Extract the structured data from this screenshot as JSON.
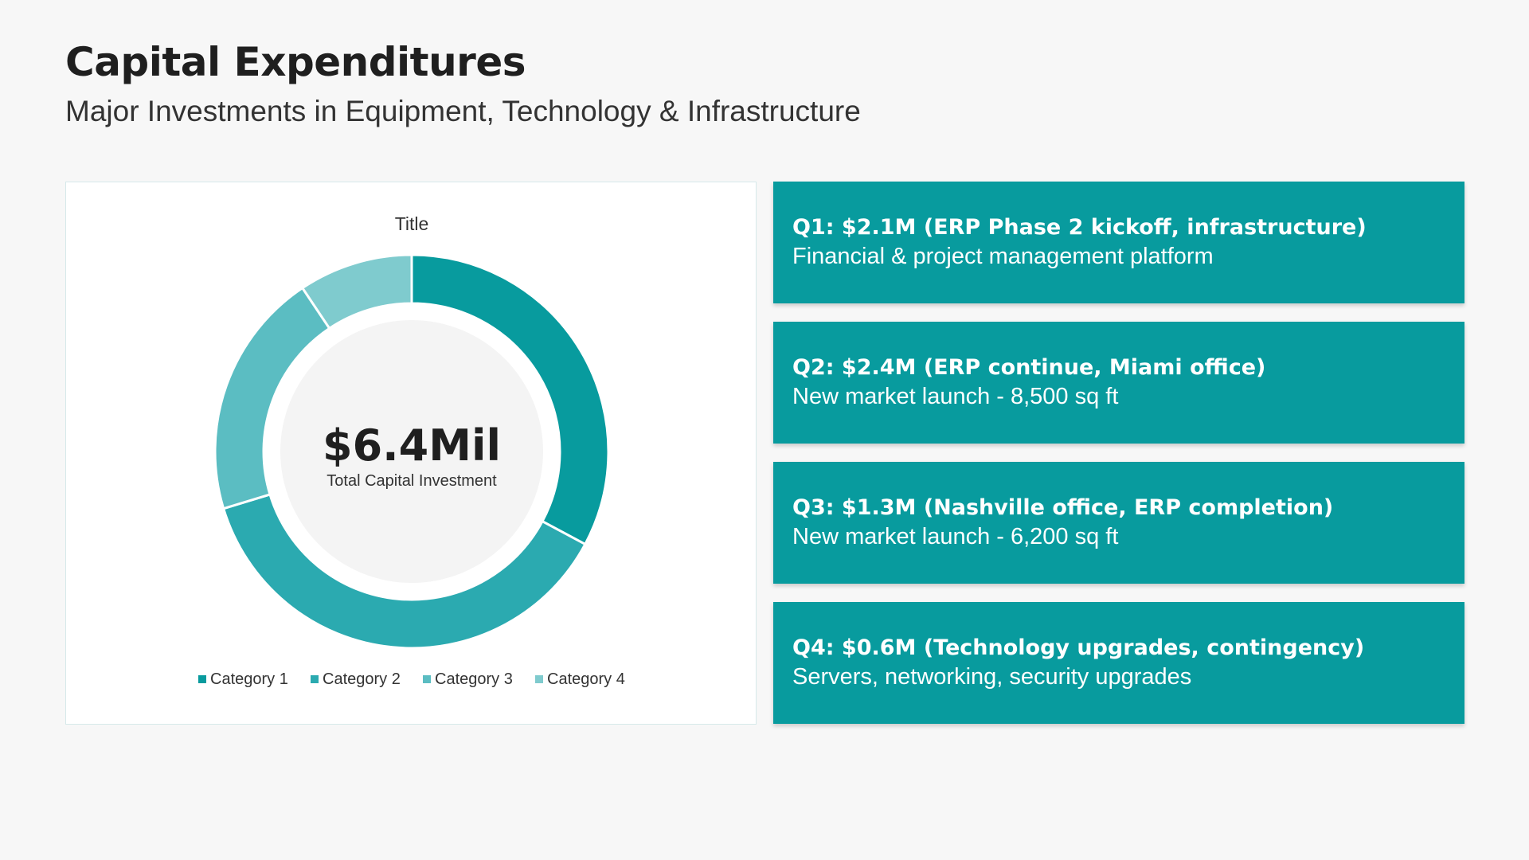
{
  "page": {
    "title": "Capital Expenditures",
    "subtitle": "Major Investments in Equipment, Technology & Infrastructure"
  },
  "colors": {
    "background": "#f7f7f7",
    "accent": "#089b9e",
    "series": [
      "#089b9e",
      "#2baab0",
      "#5bbdc2",
      "#7fcbce"
    ],
    "center_fill": "#f4f4f4",
    "text_dark": "#1f1f1f"
  },
  "chart_data": {
    "type": "pie",
    "title": "Title",
    "donut": true,
    "categories": [
      "Category 1",
      "Category 2",
      "Category 3",
      "Category 4"
    ],
    "values": [
      2.1,
      2.4,
      1.3,
      0.6
    ],
    "legend_position": "bottom",
    "center_value": "$6.4Mil",
    "center_label": "Total Capital Investment"
  },
  "cards": [
    {
      "heading": "Q1: $2.1M (ERP Phase 2 kickoff, infrastructure)",
      "detail": "Financial & project management platform"
    },
    {
      "heading": "Q2: $2.4M (ERP continue, Miami office)",
      "detail": "New market launch - 8,500 sq ft"
    },
    {
      "heading": "Q3: $1.3M (Nashville office, ERP completion)",
      "detail": "New market launch - 6,200 sq ft"
    },
    {
      "heading": "Q4: $0.6M (Technology upgrades, contingency)",
      "detail": "Servers, networking, security upgrades"
    }
  ]
}
